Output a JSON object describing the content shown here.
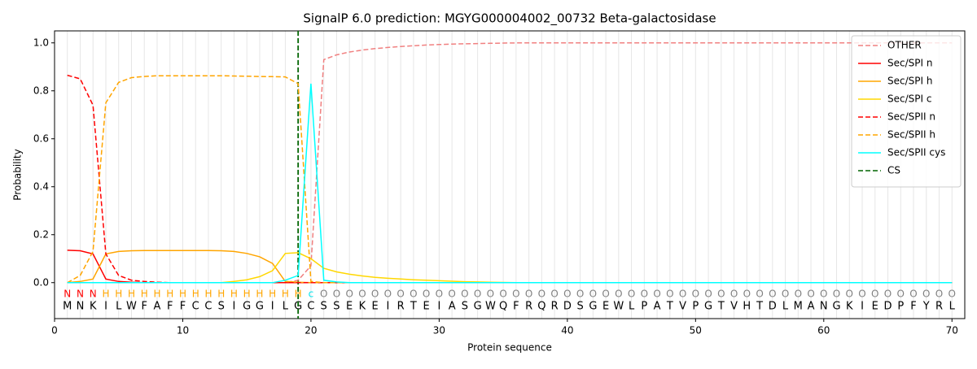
{
  "chart_data": {
    "type": "line",
    "title": "SignalP 6.0 prediction: MGYG000004002_00732 Beta-galactosidase",
    "xlabel": "Protein sequence",
    "ylabel": "Probability",
    "xlim": [
      0,
      71
    ],
    "ylim": [
      -0.15,
      1.05
    ],
    "xticks": [
      0,
      10,
      20,
      30,
      40,
      50,
      60,
      70
    ],
    "yticks": [
      {
        "value": 0,
        "label": "0.0"
      },
      0.2,
      0.4,
      0.6,
      0.8,
      {
        "value": 1,
        "label": "1.0"
      }
    ],
    "position_grid": true,
    "legend": "upper right",
    "x": [
      1,
      2,
      3,
      4,
      5,
      6,
      7,
      8,
      9,
      10,
      11,
      12,
      13,
      14,
      15,
      16,
      17,
      18,
      19,
      20,
      21,
      22,
      23,
      24,
      25,
      26,
      27,
      28,
      29,
      30,
      31,
      32,
      33,
      34,
      35,
      36,
      37,
      38,
      39,
      40,
      41,
      42,
      43,
      44,
      45,
      46,
      47,
      48,
      49,
      50,
      51,
      52,
      53,
      54,
      55,
      56,
      57,
      58,
      59,
      60,
      61,
      62,
      63,
      64,
      65,
      66,
      67,
      68,
      69,
      70
    ],
    "sequence": [
      "M",
      "N",
      "K",
      "I",
      "L",
      "W",
      "F",
      "A",
      "F",
      "F",
      "C",
      "C",
      "S",
      "I",
      "G",
      "G",
      "I",
      "L",
      "G",
      "C",
      "S",
      "S",
      "E",
      "K",
      "E",
      "I",
      "R",
      "T",
      "E",
      "I",
      "A",
      "S",
      "G",
      "W",
      "Q",
      "F",
      "R",
      "Q",
      "R",
      "D",
      "S",
      "G",
      "E",
      "W",
      "L",
      "P",
      "A",
      "T",
      "V",
      "P",
      "G",
      "T",
      "V",
      "H",
      "T",
      "D",
      "L",
      "M",
      "A",
      "N",
      "G",
      "K",
      "I",
      "E",
      "D",
      "P",
      "F",
      "Y",
      "R",
      "L"
    ],
    "annotation": [
      "N",
      "N",
      "N",
      "H",
      "H",
      "H",
      "H",
      "H",
      "H",
      "H",
      "H",
      "H",
      "H",
      "H",
      "H",
      "H",
      "H",
      "H",
      "H",
      "c",
      "O",
      "O",
      "O",
      "O",
      "O",
      "O",
      "O",
      "O",
      "O",
      "O",
      "O",
      "O",
      "O",
      "O",
      "O",
      "O",
      "O",
      "O",
      "O",
      "O",
      "O",
      "O",
      "O",
      "O",
      "O",
      "O",
      "O",
      "O",
      "O",
      "O",
      "O",
      "O",
      "O",
      "O",
      "O",
      "O",
      "O",
      "O",
      "O",
      "O",
      "O",
      "O",
      "O",
      "O",
      "O",
      "O",
      "O",
      "O",
      "O",
      "O"
    ],
    "annotation_colors": {
      "N": "#ff0000",
      "H": "#ffa500",
      "c": "#00e5ee",
      "O": "#808080"
    },
    "series": [
      {
        "name": "OTHER",
        "color": "#f08080",
        "dash": true,
        "values": [
          0,
          0,
          0,
          0,
          0,
          0,
          0,
          0,
          0,
          0,
          0,
          0,
          0,
          0,
          0,
          0,
          0,
          0,
          0.01,
          0.07,
          0.93,
          0.95,
          0.962,
          0.97,
          0.976,
          0.981,
          0.985,
          0.988,
          0.991,
          0.993,
          0.995,
          0.996,
          0.997,
          0.998,
          0.999,
          1,
          1,
          1,
          1,
          1,
          1,
          1,
          1,
          1,
          1,
          1,
          1,
          1,
          1,
          1,
          1,
          1,
          1,
          1,
          1,
          1,
          1,
          1,
          1,
          1,
          1,
          1,
          1,
          1,
          1,
          1,
          1,
          1,
          1,
          1
        ]
      },
      {
        "name": "Sec/SPI n",
        "color": "#ff0000",
        "dash": false,
        "values": [
          0.135,
          0.133,
          0.12,
          0.015,
          0.005,
          0.002,
          0,
          0,
          0,
          0,
          0,
          0,
          0,
          0,
          0,
          0,
          0,
          0,
          0,
          0,
          0,
          0,
          0,
          0,
          0,
          0,
          0,
          0,
          0,
          0,
          0,
          0,
          0,
          0,
          0,
          0,
          0,
          0,
          0,
          0,
          0,
          0,
          0,
          0,
          0,
          0,
          0,
          0,
          0,
          0,
          0,
          0,
          0,
          0,
          0,
          0,
          0,
          0,
          0,
          0,
          0,
          0,
          0,
          0,
          0,
          0,
          0,
          0,
          0,
          0
        ]
      },
      {
        "name": "Sec/SPI h",
        "color": "#ffa500",
        "dash": false,
        "values": [
          0,
          0.005,
          0.015,
          0.12,
          0.13,
          0.133,
          0.134,
          0.134,
          0.134,
          0.134,
          0.134,
          0.134,
          0.133,
          0.13,
          0.122,
          0.108,
          0.08,
          0.005,
          0.002,
          0,
          0,
          0,
          0,
          0,
          0,
          0,
          0,
          0,
          0,
          0,
          0,
          0,
          0,
          0,
          0,
          0,
          0,
          0,
          0,
          0,
          0,
          0,
          0,
          0,
          0,
          0,
          0,
          0,
          0,
          0,
          0,
          0,
          0,
          0,
          0,
          0,
          0,
          0,
          0,
          0,
          0,
          0,
          0,
          0,
          0,
          0,
          0,
          0,
          0,
          0
        ]
      },
      {
        "name": "Sec/SPI c",
        "color": "#ffd700",
        "dash": false,
        "values": [
          0,
          0,
          0,
          0,
          0,
          0,
          0,
          0,
          0,
          0,
          0,
          0,
          0,
          0.005,
          0.012,
          0.025,
          0.05,
          0.122,
          0.125,
          0.1,
          0.06,
          0.045,
          0.035,
          0.028,
          0.022,
          0.018,
          0.015,
          0.012,
          0.01,
          0.008,
          0.006,
          0.004,
          0.003,
          0.002,
          0.001,
          0,
          0,
          0,
          0,
          0,
          0,
          0,
          0,
          0,
          0,
          0,
          0,
          0,
          0,
          0,
          0,
          0,
          0,
          0,
          0,
          0,
          0,
          0,
          0,
          0,
          0,
          0,
          0,
          0,
          0,
          0,
          0,
          0,
          0,
          0
        ]
      },
      {
        "name": "Sec/SPII n",
        "color": "#ff0000",
        "dash": true,
        "values": [
          0.865,
          0.85,
          0.74,
          0.12,
          0.03,
          0.01,
          0.005,
          0.002,
          0,
          0,
          0,
          0,
          0,
          0,
          0,
          0,
          0,
          0,
          0,
          0,
          0,
          0,
          0,
          0,
          0,
          0,
          0,
          0,
          0,
          0,
          0,
          0,
          0,
          0,
          0,
          0,
          0,
          0,
          0,
          0,
          0,
          0,
          0,
          0,
          0,
          0,
          0,
          0,
          0,
          0,
          0,
          0,
          0,
          0,
          0,
          0,
          0,
          0,
          0,
          0,
          0,
          0,
          0,
          0,
          0,
          0,
          0,
          0,
          0,
          0
        ]
      },
      {
        "name": "Sec/SPII h",
        "color": "#ffa500",
        "dash": true,
        "values": [
          0,
          0.03,
          0.13,
          0.75,
          0.835,
          0.855,
          0.86,
          0.863,
          0.863,
          0.863,
          0.863,
          0.863,
          0.863,
          0.862,
          0.861,
          0.86,
          0.859,
          0.858,
          0.83,
          0.005,
          0,
          0,
          0,
          0,
          0,
          0,
          0,
          0,
          0,
          0,
          0,
          0,
          0,
          0,
          0,
          0,
          0,
          0,
          0,
          0,
          0,
          0,
          0,
          0,
          0,
          0,
          0,
          0,
          0,
          0,
          0,
          0,
          0,
          0,
          0,
          0,
          0,
          0,
          0,
          0,
          0,
          0,
          0,
          0,
          0,
          0,
          0,
          0,
          0,
          0
        ]
      },
      {
        "name": "Sec/SPII cys",
        "color": "#00ffff",
        "dash": false,
        "values": [
          0,
          0,
          0,
          0,
          0,
          0,
          0,
          0,
          0,
          0,
          0,
          0,
          0,
          0,
          0,
          0,
          0,
          0.01,
          0.03,
          0.83,
          0.01,
          0.003,
          0,
          0,
          0,
          0,
          0,
          0,
          0,
          0,
          0,
          0,
          0,
          0,
          0,
          0,
          0,
          0,
          0,
          0,
          0,
          0,
          0,
          0,
          0,
          0,
          0,
          0,
          0,
          0,
          0,
          0,
          0,
          0,
          0,
          0,
          0,
          0,
          0,
          0,
          0,
          0,
          0,
          0,
          0,
          0,
          0,
          0,
          0,
          0
        ]
      }
    ],
    "cs": {
      "name": "CS",
      "color": "#006400",
      "x": 19
    }
  }
}
